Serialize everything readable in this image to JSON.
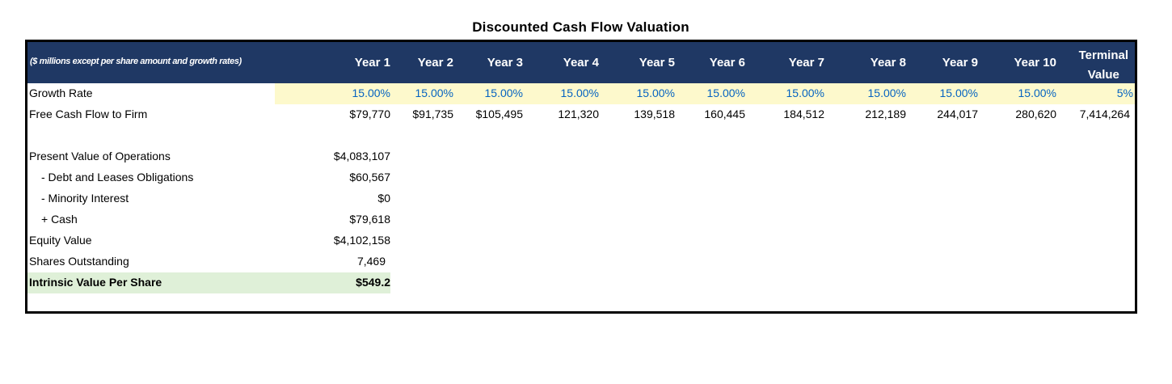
{
  "title": "Discounted Cash Flow Valuation",
  "header": {
    "note": "($ millions except per share amount and growth rates)",
    "columns": [
      "Year 1",
      "Year 2",
      "Year 3",
      "Year 4",
      "Year 5",
      "Year 6",
      "Year 7",
      "Year 8",
      "Year 9",
      "Year 10"
    ],
    "terminal": [
      "Terminal",
      "Value"
    ]
  },
  "growth_rate": {
    "label": "Growth Rate",
    "values": [
      "15.00%",
      "15.00%",
      "15.00%",
      "15.00%",
      "15.00%",
      "15.00%",
      "15.00%",
      "15.00%",
      "15.00%",
      "15.00%",
      "5%"
    ]
  },
  "fcff": {
    "label": "Free Cash Flow to Firm",
    "values": [
      "$79,770",
      "$91,735",
      "$105,495",
      "121,320",
      "139,518",
      "160,445",
      "184,512",
      "212,189",
      "244,017",
      "280,620",
      "7,414,264"
    ]
  },
  "valuation": [
    {
      "label": "Present Value of Operations",
      "value": "$4,083,107"
    },
    {
      "label": "- Debt and Leases Obligations",
      "value": "$60,567"
    },
    {
      "label": "- Minority Interest",
      "value": "$0"
    },
    {
      "label": "+ Cash",
      "value": "$79,618"
    },
    {
      "label": "Equity Value",
      "value": "$4,102,158"
    },
    {
      "label": "Shares Outstanding",
      "value": "7,469"
    },
    {
      "label": "Intrinsic Value Per Share",
      "value": "$549.2"
    }
  ],
  "colors": {
    "header_bg": "#1f3864",
    "input_blue": "#0563c1",
    "growth_band": "#fdf9cc",
    "result_band": "#dff0d8"
  }
}
